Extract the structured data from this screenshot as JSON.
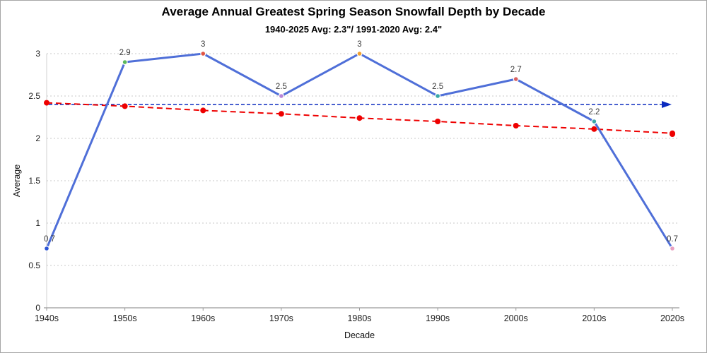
{
  "chart_data": {
    "type": "line",
    "title": "Average Annual Greatest Spring Season Snowfall Depth by Decade",
    "subtitle": "1940-2025 Avg: 2.3\"/ 1991-2020 Avg: 2.4\"",
    "xlabel": "Decade",
    "ylabel": "Average",
    "categories": [
      "1940s",
      "1950s",
      "1960s",
      "1970s",
      "1980s",
      "1990s",
      "2000s",
      "2010s",
      "2020s"
    ],
    "series": [
      {
        "name": "average-snowfall",
        "type": "line",
        "values": [
          0.7,
          2.9,
          3,
          2.5,
          3,
          2.5,
          2.7,
          2.2,
          0.7
        ],
        "labels": [
          "0.7",
          "2.9",
          "3",
          "2.5",
          "3",
          "2.5",
          "2.7",
          "2.2",
          "0.7"
        ],
        "color": "#4f6fd8",
        "marker_colors": [
          "#2b54d4",
          "#5cb85c",
          "#e05544",
          "#b886d8",
          "#f0a030",
          "#3aa8a8",
          "#d86060",
          "#3aa8a8",
          "#e8a0c0"
        ]
      },
      {
        "name": "linear-trend",
        "type": "dashed-line",
        "values": [
          2.42,
          2.38,
          2.33,
          2.29,
          2.24,
          2.2,
          2.15,
          2.11,
          2.06
        ],
        "color": "#ee0000"
      },
      {
        "name": "reference-1991-2020-average",
        "type": "reference-line",
        "value": 2.4,
        "color": "#0b2bbf"
      }
    ],
    "ylim": [
      0,
      3
    ],
    "yticks": [
      0,
      0.5,
      1,
      1.5,
      2,
      2.5,
      3
    ],
    "ytick_labels": [
      "0",
      "0.5",
      "1",
      "1.5",
      "2",
      "2.5",
      "3"
    ],
    "grid": "horizontal-dotted",
    "legend": "none",
    "colors": {
      "gridline": "#c8c8c8",
      "axis": "#9a9a9a",
      "tick_text": "#1a1a1a",
      "data_label": "#3a3a3a"
    }
  }
}
